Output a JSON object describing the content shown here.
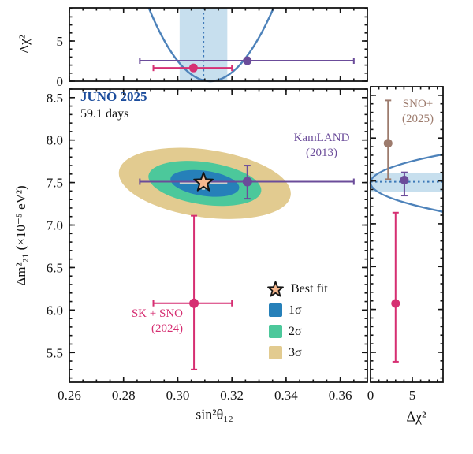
{
  "figure": {
    "title": "JUNO 2025",
    "subtitle": "59.1 days"
  },
  "colors": {
    "curve_blue": "#4d82ba",
    "band_blue": "#c7dfee",
    "dotted_blue": "#3d79b8",
    "sigma1": "#2680b9",
    "sigma2": "#4cc89b",
    "sigma3": "#e2cb90",
    "star_fill": "#f6b78e",
    "bestfit_bar_gray": "#c9cfcc",
    "kamland_purple": "#6b4c9a",
    "sksno_pink": "#d62f72",
    "snoplus_brown": "#9d7b6d",
    "juno_title_blue": "#1b4c9c",
    "axis_black": "#141414"
  },
  "legend": {
    "best_fit": "Best fit",
    "sigma1": "1σ",
    "sigma2": "2σ",
    "sigma3": "3σ"
  },
  "annotations": {
    "kamland": {
      "line1": "KamLAND",
      "line2": "(2013)"
    },
    "sksno": {
      "line1": "SK + SNO",
      "line2": "(2024)"
    },
    "snoplus": {
      "line1": "SNO+",
      "line2": "(2025)"
    }
  },
  "axes": {
    "main_xlabel": "sin²θ₁₂",
    "main_ylabel": "Δm²₂₁ (×10⁻⁵ eV²)",
    "profile_label": "Δχ²"
  },
  "chart_data": [
    {
      "id": "top_chi2_profile",
      "type": "line",
      "ylabel": "Δχ²",
      "xlim": [
        0.26,
        0.37
      ],
      "ylim": [
        0,
        9.12
      ],
      "y_ticks_major": [
        0,
        5
      ],
      "y_tick_labels": [
        "0",
        "5"
      ],
      "y_minor_step": 1,
      "x_minor_step": 0.005,
      "x_ticks_major": [
        0.26,
        0.28,
        0.3,
        0.32,
        0.34,
        0.36
      ],
      "parabola": {
        "x_left": 0.2893,
        "x_right": 0.3354,
        "vertex_x": 0.3116,
        "top_value": 9.12
      },
      "band_x": [
        0.3007,
        0.3183
      ],
      "dotted_x": 0.3095,
      "points": [
        {
          "name": "KamLAND",
          "x": 0.3257,
          "y": 2.55,
          "xerr": [
            0.286,
            0.365
          ],
          "color": "kamland_purple"
        },
        {
          "name": "SK+SNO",
          "x": 0.3058,
          "y": 1.65,
          "xerr": [
            0.291,
            0.32
          ],
          "color": "sksno_pink"
        }
      ]
    },
    {
      "id": "main_contour",
      "type": "scatter",
      "xlabel": "sin²θ₁₂",
      "ylabel": "Δm²₂₁ (×10⁻⁵ eV²)",
      "xlim": [
        0.26,
        0.37
      ],
      "ylim": [
        5.15,
        8.6
      ],
      "x_ticks_major": [
        0.26,
        0.28,
        0.3,
        0.32,
        0.34,
        0.36
      ],
      "x_tick_labels": [
        "0.26",
        "0.28",
        "0.30",
        "0.32",
        "0.34",
        "0.36"
      ],
      "x_minor_step": 0.005,
      "y_ticks_major": [
        5.5,
        6.0,
        6.5,
        7.0,
        7.5,
        8.0,
        8.5
      ],
      "y_tick_labels": [
        "5.5",
        "6.0",
        "6.5",
        "7.0",
        "7.5",
        "8.0",
        "8.5"
      ],
      "y_minor_step": 0.1,
      "contours": {
        "center": [
          0.31,
          7.49
        ],
        "rotation_deg": 8,
        "semi_axes": [
          {
            "level": "1σ",
            "x": 0.0128,
            "y": 0.148
          },
          {
            "level": "2σ",
            "x": 0.021,
            "y": 0.25
          },
          {
            "level": "3σ",
            "x": 0.032,
            "y": 0.398
          }
        ]
      },
      "best_fit": {
        "x": 0.3095,
        "y": 7.5,
        "xerr": [
          0.3007,
          0.3183
        ],
        "yerr": [
          7.415,
          7.585
        ]
      },
      "points": [
        {
          "name": "KamLAND",
          "x": 0.3257,
          "y": 7.51,
          "xerr": [
            0.286,
            0.365
          ],
          "yerr": [
            7.31,
            7.7
          ],
          "color": "kamland_purple"
        },
        {
          "name": "SK+SNO",
          "x": 0.306,
          "y": 6.08,
          "xerr": [
            0.291,
            0.32
          ],
          "yerr": [
            5.3,
            7.11
          ],
          "color": "sksno_pink"
        }
      ]
    },
    {
      "id": "right_chi2_profile",
      "type": "line",
      "xlabel": "Δχ²",
      "xlim": [
        0,
        8.68
      ],
      "ylim": [
        5.15,
        8.6
      ],
      "x_ticks_major": [
        0,
        5
      ],
      "x_tick_labels": [
        "0",
        "5"
      ],
      "x_minor_step": 1,
      "y_minor_step": 0.1,
      "y_ticks_major": [
        5.5,
        6.0,
        6.5,
        7.0,
        7.5,
        8.0,
        8.5
      ],
      "parabola": {
        "vertex_y": 7.485,
        "y_top": 7.81,
        "y_bottom": 7.14,
        "right_value": 8.68
      },
      "band_y": [
        7.37,
        7.59
      ],
      "dotted_y": 7.49,
      "points": [
        {
          "name": "SNO+ (2025)",
          "x": 2.1,
          "y": 7.94,
          "yerr": [
            7.52,
            8.44
          ],
          "color": "snoplus_brown"
        },
        {
          "name": "KamLAND",
          "x": 4.05,
          "y": 7.51,
          "yerr": [
            7.33,
            7.6
          ],
          "color": "kamland_purple"
        },
        {
          "name": "SK+SNO",
          "x": 3.0,
          "y": 6.07,
          "yerr": [
            5.39,
            7.13
          ],
          "color": "sksno_pink"
        }
      ]
    }
  ]
}
